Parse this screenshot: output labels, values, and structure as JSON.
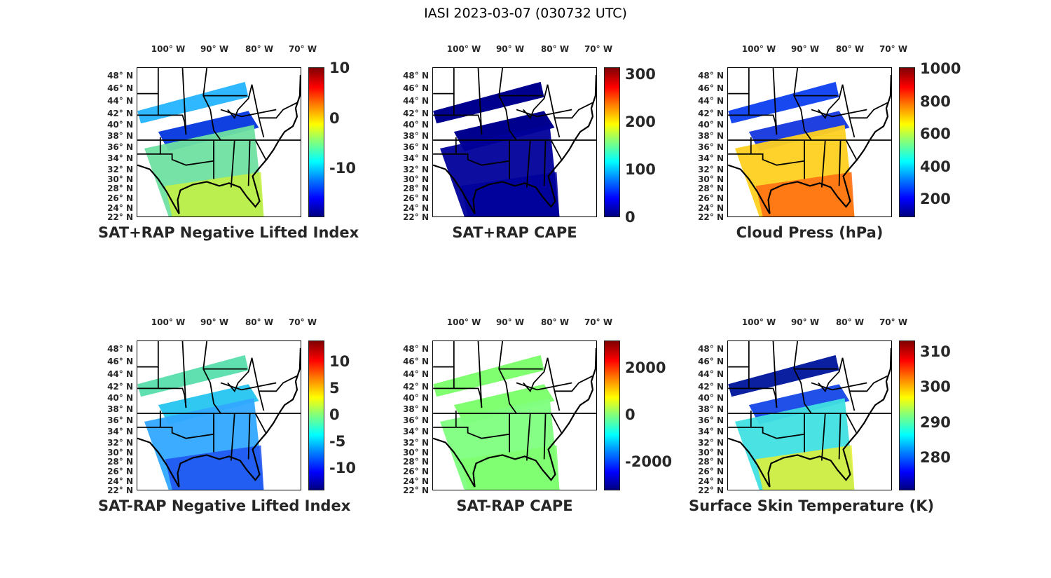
{
  "figure_title": "IASI 2023-03-07 (030732 UTC)",
  "lon_labels": [
    "100° W",
    "90° W",
    "80° W",
    "70° W"
  ],
  "lat_labels": [
    "48° N",
    "46° N",
    "44° N",
    "42° N",
    "40° N",
    "38° N",
    "36° N",
    "34° N",
    "32° N",
    "30° N",
    "28° N",
    "26° N",
    "24° N",
    "22° N"
  ],
  "panels": [
    {
      "title": "SAT+RAP Negative Lifted Index",
      "crange": [
        -19.8,
        10.2
      ],
      "ticks": [
        "10",
        "0",
        "-10"
      ],
      "tickvals": [
        10,
        0,
        -10
      ],
      "colors": [
        "#2fb8ff",
        "#1040e0",
        "#6fe0a0",
        "#c8f040"
      ]
    },
    {
      "title": "SAT+RAP CAPE",
      "crange": [
        0,
        315
      ],
      "ticks": [
        "300",
        "200",
        "100",
        "0"
      ],
      "tickvals": [
        300,
        200,
        100,
        0
      ],
      "colors": [
        "#00008f",
        "#00008f",
        "#00009a",
        "#00009a"
      ]
    },
    {
      "title": "Cloud Press (hPa)",
      "crange": [
        90,
        1010
      ],
      "ticks": [
        "1000",
        "800",
        "600",
        "400",
        "200"
      ],
      "tickvals": [
        1000,
        800,
        600,
        400,
        200
      ],
      "colors": [
        "#1848f0",
        "#2040e0",
        "#ffd020",
        "#ff6a10"
      ]
    },
    {
      "title": "SAT-RAP Negative Lifted Index",
      "crange": [
        -14.2,
        13.9
      ],
      "ticks": [
        "10",
        "5",
        "0",
        "-5",
        "-10"
      ],
      "tickvals": [
        10,
        5,
        0,
        -5,
        -10
      ],
      "colors": [
        "#60e0b0",
        "#30c8f0",
        "#30a8ff",
        "#2050f0"
      ]
    },
    {
      "title": "SAT-RAP CAPE",
      "crange": [
        -3220,
        3160
      ],
      "ticks": [
        "2000",
        "0",
        "-2000"
      ],
      "tickvals": [
        2000,
        0,
        -2000
      ],
      "colors": [
        "#80ff70",
        "#80ff70",
        "#7fff7f",
        "#80ff70"
      ]
    },
    {
      "title": "Surface Skin Temperature (K)",
      "crange": [
        270.8,
        313.1
      ],
      "ticks": [
        "310",
        "300",
        "290",
        "280"
      ],
      "tickvals": [
        310,
        300,
        290,
        280
      ],
      "colors": [
        "#0a20a0",
        "#2050e8",
        "#40e0e0",
        "#e8f030"
      ]
    }
  ]
}
